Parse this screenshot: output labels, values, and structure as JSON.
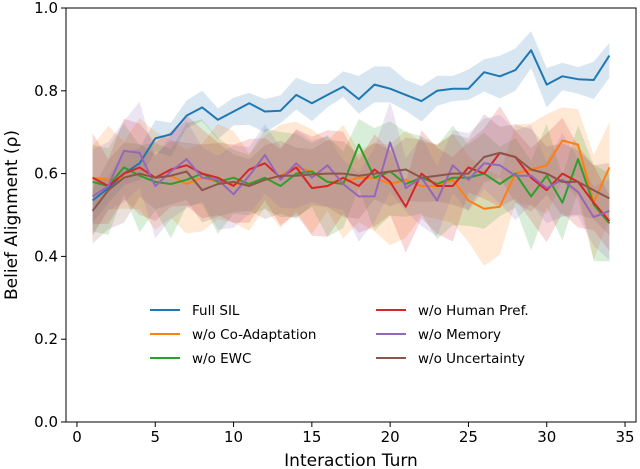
{
  "chart_data": {
    "type": "line",
    "title": "",
    "xlabel": "Interaction Turn",
    "ylabel": "Belief Alignment (ρ)",
    "xlim": [
      -0.7,
      35.7
    ],
    "ylim": [
      0.0,
      1.0
    ],
    "xticks": [
      0,
      5,
      10,
      15,
      20,
      25,
      30,
      35
    ],
    "xtick_labels": [
      "0",
      "5",
      "10",
      "15",
      "20",
      "25",
      "30",
      "35"
    ],
    "yticks": [
      0.0,
      0.2,
      0.4,
      0.6,
      0.8,
      1.0
    ],
    "ytick_labels": [
      "0.0",
      "0.2",
      "0.4",
      "0.6",
      "0.8",
      "1.0"
    ],
    "grid": false,
    "legend_position": "lower-center",
    "x": [
      1,
      2,
      3,
      4,
      5,
      6,
      7,
      8,
      9,
      10,
      11,
      12,
      13,
      14,
      15,
      16,
      17,
      18,
      19,
      20,
      21,
      22,
      23,
      24,
      25,
      26,
      27,
      28,
      29,
      30,
      31,
      32,
      33,
      34
    ],
    "series": [
      {
        "name": "Full SIL",
        "color": "#1f77b4",
        "values": [
          0.535,
          0.565,
          0.6,
          0.625,
          0.685,
          0.695,
          0.74,
          0.76,
          0.73,
          0.75,
          0.77,
          0.75,
          0.752,
          0.79,
          0.77,
          0.79,
          0.81,
          0.78,
          0.815,
          0.805,
          0.79,
          0.775,
          0.8,
          0.805,
          0.805,
          0.845,
          0.835,
          0.85,
          0.898,
          0.815,
          0.835,
          0.828,
          0.826,
          0.885
        ],
        "band": 0.04
      },
      {
        "name": "w/o Co-Adaptation",
        "color": "#ff7f0e",
        "values": [
          0.59,
          0.585,
          0.59,
          0.6,
          0.59,
          0.595,
          0.575,
          0.59,
          0.58,
          0.575,
          0.575,
          0.585,
          0.595,
          0.615,
          0.605,
          0.58,
          0.58,
          0.59,
          0.59,
          0.575,
          0.585,
          0.57,
          0.57,
          0.585,
          0.535,
          0.515,
          0.52,
          0.6,
          0.61,
          0.62,
          0.68,
          0.67,
          0.53,
          0.615
        ],
        "band": 0.11
      },
      {
        "name": "w/o EWC",
        "color": "#2ca02c",
        "values": [
          0.58,
          0.57,
          0.615,
          0.595,
          0.58,
          0.575,
          0.585,
          0.6,
          0.58,
          0.59,
          0.575,
          0.59,
          0.57,
          0.6,
          0.605,
          0.58,
          0.575,
          0.67,
          0.59,
          0.605,
          0.575,
          0.59,
          0.575,
          0.59,
          0.59,
          0.6,
          0.575,
          0.6,
          0.545,
          0.595,
          0.53,
          0.635,
          0.525,
          0.48
        ],
        "band": 0.1
      },
      {
        "name": "w/o Human Pref.",
        "color": "#d62728",
        "values": [
          0.59,
          0.57,
          0.6,
          0.615,
          0.59,
          0.61,
          0.62,
          0.6,
          0.59,
          0.57,
          0.61,
          0.625,
          0.59,
          0.615,
          0.565,
          0.57,
          0.59,
          0.57,
          0.61,
          0.58,
          0.52,
          0.6,
          0.57,
          0.57,
          0.615,
          0.6,
          0.65,
          0.64,
          0.59,
          0.56,
          0.6,
          0.58,
          0.53,
          0.485
        ],
        "band": 0.1
      },
      {
        "name": "w/o Memory",
        "color": "#9467bd",
        "values": [
          0.545,
          0.57,
          0.655,
          0.65,
          0.57,
          0.605,
          0.635,
          0.59,
          0.585,
          0.55,
          0.595,
          0.645,
          0.585,
          0.625,
          0.59,
          0.62,
          0.575,
          0.545,
          0.545,
          0.675,
          0.565,
          0.59,
          0.535,
          0.62,
          0.585,
          0.625,
          0.62,
          0.595,
          0.595,
          0.565,
          0.585,
          0.555,
          0.495,
          0.51
        ],
        "band": 0.09
      },
      {
        "name": "w/o Uncertainty",
        "color": "#8c564b",
        "values": [
          0.51,
          0.56,
          0.59,
          0.6,
          0.59,
          0.595,
          0.605,
          0.56,
          0.575,
          0.58,
          0.57,
          0.585,
          0.595,
          0.595,
          0.598,
          0.6,
          0.6,
          0.595,
          0.6,
          0.605,
          0.61,
          0.59,
          0.595,
          0.6,
          0.6,
          0.64,
          0.65,
          0.64,
          0.61,
          0.6,
          0.58,
          0.58,
          0.56,
          0.54
        ],
        "band": 0.08
      }
    ]
  }
}
